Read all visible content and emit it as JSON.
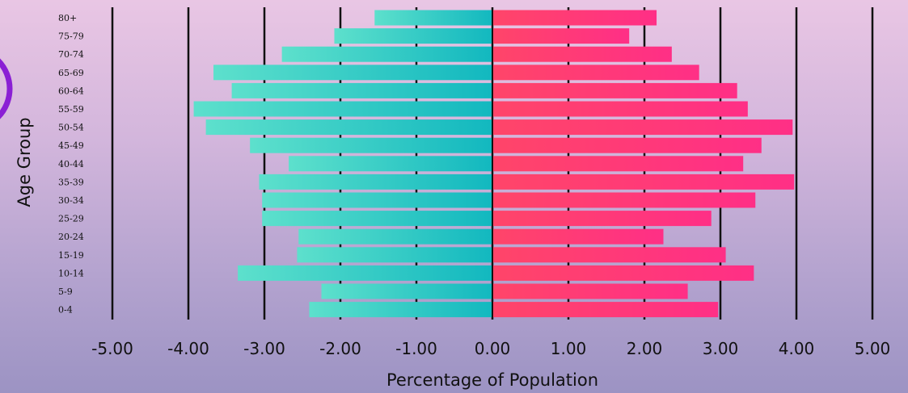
{
  "chart_data": {
    "type": "bar",
    "orientation": "horizontal",
    "title": "",
    "xlabel": "Percentage of Population",
    "ylabel": "Age Group",
    "xlim": [
      -5,
      5
    ],
    "x_ticks": [
      "-5.00",
      "-4.00",
      "-3.00",
      "-2.00",
      "-1.00",
      "0.00",
      "1.00",
      "2.00",
      "3.00",
      "4.00",
      "5.00"
    ],
    "x_tick_values": [
      -5,
      -4,
      -3,
      -2,
      -1,
      0,
      1,
      2,
      3,
      4,
      5
    ],
    "grid": true,
    "categories": [
      "80+",
      "75-79",
      "70-74",
      "65-69",
      "60-64",
      "55-59",
      "50-54",
      "45-49",
      "40-44",
      "35-39",
      "30-34",
      "25-29",
      "20-24",
      "15-19",
      "10-14",
      "5-9",
      "0-4"
    ],
    "series": [
      {
        "values": [
          -1.55,
          -2.08,
          -2.77,
          -3.67,
          -3.43,
          -3.93,
          -3.77,
          -3.19,
          -2.68,
          -3.07,
          -3.03,
          -3.03,
          -2.55,
          -2.57,
          -3.35,
          -2.25,
          -2.41
        ],
        "colors": [
          "#5de0cc",
          "#12b8bf"
        ]
      },
      {
        "values": [
          2.16,
          1.8,
          2.36,
          2.72,
          3.22,
          3.36,
          3.95,
          3.54,
          3.3,
          3.97,
          3.46,
          2.88,
          2.25,
          3.07,
          3.44,
          2.57,
          2.97
        ],
        "colors": [
          "#ff4569",
          "#ff2f86"
        ]
      }
    ]
  }
}
